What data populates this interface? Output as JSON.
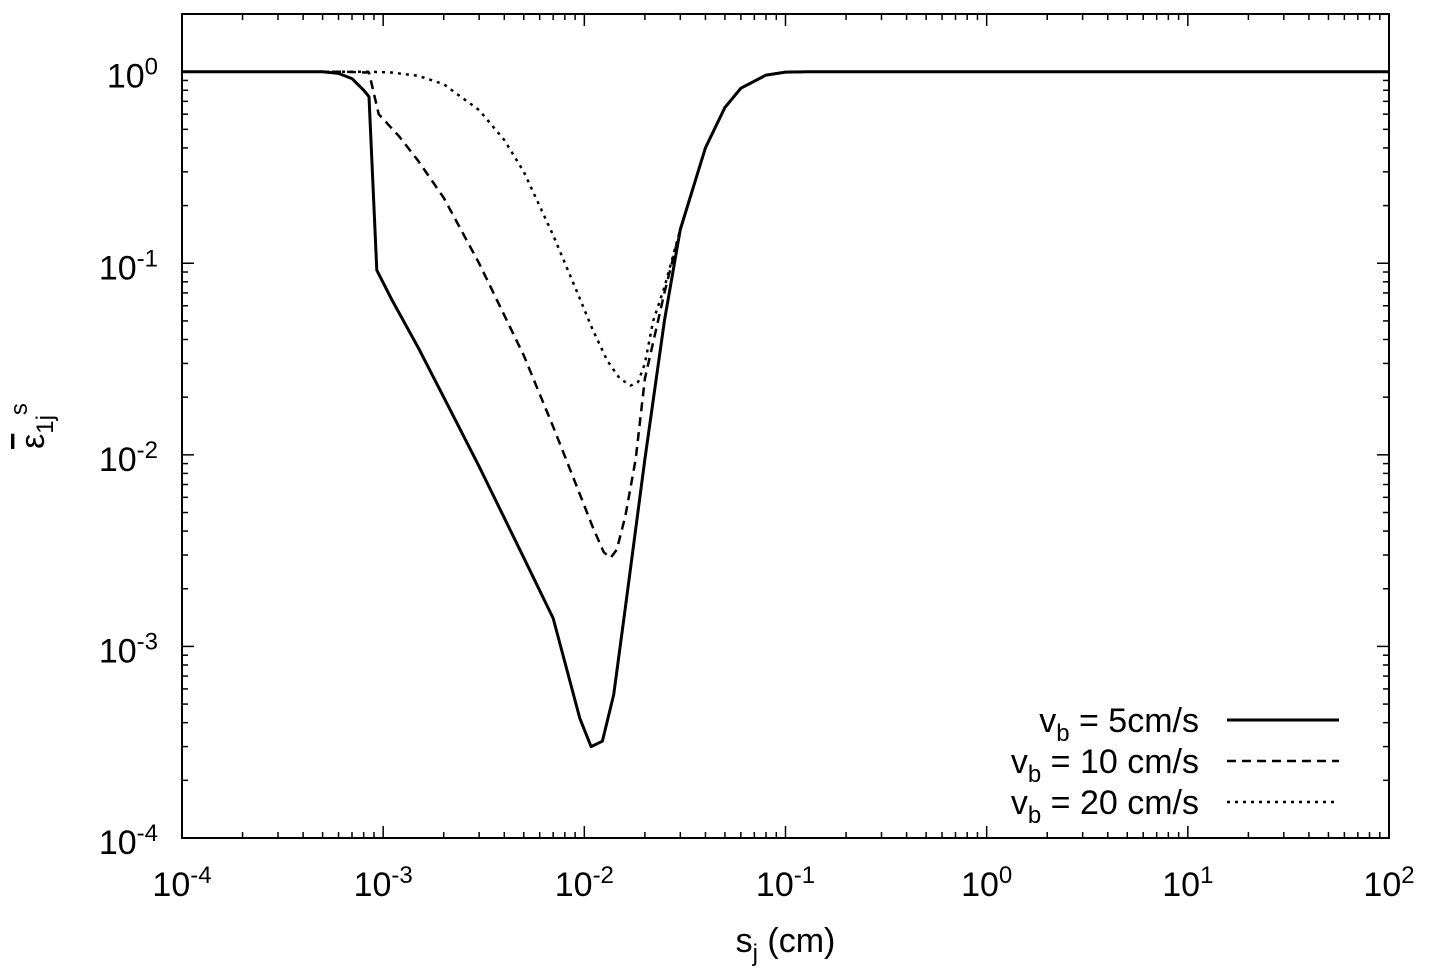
{
  "chart_data": {
    "type": "line",
    "xlabel": {
      "base": "s",
      "sub": "j",
      "rest": " (cm)"
    },
    "ylabel": {
      "base": "ε",
      "sub": "1j",
      "sup": "s"
    },
    "xscale": "log",
    "yscale": "log",
    "xlim": [
      0.0001,
      100
    ],
    "ylim": [
      0.0001,
      2
    ],
    "grid": false,
    "legend_position": "bottom-right",
    "xticks": [
      {
        "value": 0.0001,
        "base": "10",
        "exp": "-4"
      },
      {
        "value": 0.001,
        "base": "10",
        "exp": "-3"
      },
      {
        "value": 0.01,
        "base": "10",
        "exp": "-2"
      },
      {
        "value": 0.1,
        "base": "10",
        "exp": "-1"
      },
      {
        "value": 1,
        "base": "10",
        "exp": "0"
      },
      {
        "value": 10,
        "base": "10",
        "exp": "1"
      },
      {
        "value": 100,
        "base": "10",
        "exp": "2"
      }
    ],
    "yticks": [
      {
        "value": 0.0001,
        "base": "10",
        "exp": "-4"
      },
      {
        "value": 0.001,
        "base": "10",
        "exp": "-3"
      },
      {
        "value": 0.01,
        "base": "10",
        "exp": "-2"
      },
      {
        "value": 0.1,
        "base": "10",
        "exp": "-1"
      },
      {
        "value": 1,
        "base": "10",
        "exp": "0"
      }
    ],
    "series": [
      {
        "name": {
          "base": "v",
          "sub": "b",
          "rest": " = 5cm/s"
        },
        "dash": "solid",
        "color": "#000000",
        "x": [
          0.0001,
          0.0005,
          0.0006,
          0.0007,
          0.0008,
          0.00085,
          0.00093,
          0.0011,
          0.0015,
          0.002,
          0.003,
          0.005,
          0.007,
          0.0095,
          0.0108,
          0.0123,
          0.014,
          0.016,
          0.02,
          0.025,
          0.03,
          0.04,
          0.05,
          0.06,
          0.08,
          0.1,
          0.13,
          1,
          100
        ],
        "y": [
          1,
          1,
          0.98,
          0.92,
          0.8,
          0.74,
          0.092,
          0.065,
          0.036,
          0.02,
          0.0087,
          0.0029,
          0.0014,
          0.00042,
          0.0003,
          0.00032,
          0.00056,
          0.0016,
          0.0095,
          0.05,
          0.15,
          0.4,
          0.65,
          0.82,
          0.96,
          0.995,
          1,
          1,
          1
        ]
      },
      {
        "name": {
          "base": "v",
          "sub": "b",
          "rest": " = 10 cm/s"
        },
        "dash": "dashed",
        "color": "#000000",
        "x": [
          0.0001,
          0.0006,
          0.00085,
          0.00095,
          0.0012,
          0.0015,
          0.002,
          0.003,
          0.005,
          0.007,
          0.009,
          0.011,
          0.0125,
          0.0135,
          0.0145,
          0.016,
          0.018,
          0.02,
          0.025,
          0.03,
          0.04,
          0.05,
          0.06,
          0.08,
          0.1,
          0.13,
          1,
          100
        ],
        "y": [
          1,
          1,
          0.99,
          0.6,
          0.46,
          0.34,
          0.22,
          0.1,
          0.033,
          0.014,
          0.0072,
          0.0042,
          0.0031,
          0.0029,
          0.0032,
          0.0048,
          0.0095,
          0.025,
          0.07,
          0.15,
          0.4,
          0.65,
          0.82,
          0.96,
          0.995,
          1,
          1,
          1
        ]
      },
      {
        "name": {
          "base": "v",
          "sub": "b",
          "rest": " = 20 cm/s"
        },
        "dash": "dotted",
        "color": "#000000",
        "x": [
          0.0001,
          0.00085,
          0.0011,
          0.0015,
          0.002,
          0.003,
          0.004,
          0.005,
          0.007,
          0.009,
          0.011,
          0.013,
          0.015,
          0.017,
          0.0185,
          0.02,
          0.022,
          0.025,
          0.03,
          0.04,
          0.05,
          0.06,
          0.08,
          0.1,
          0.13,
          1,
          100
        ],
        "y": [
          1,
          1,
          0.99,
          0.95,
          0.86,
          0.63,
          0.44,
          0.3,
          0.14,
          0.075,
          0.045,
          0.031,
          0.025,
          0.023,
          0.024,
          0.03,
          0.05,
          0.075,
          0.15,
          0.4,
          0.65,
          0.82,
          0.96,
          0.995,
          1,
          1,
          1
        ]
      }
    ]
  }
}
